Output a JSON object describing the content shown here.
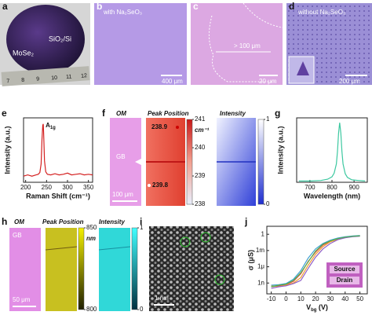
{
  "panels": {
    "a": {
      "letter": "a",
      "material": "MoSe₂",
      "substrate": "SiO₂/Si",
      "ruler": [
        7,
        8,
        9,
        10,
        11,
        12
      ]
    },
    "b": {
      "letter": "b",
      "caption": "with Na₂SeO₃",
      "scale": "400 μm"
    },
    "c": {
      "letter": "c",
      "size": "> 100 μm",
      "scale": "20 μm"
    },
    "d": {
      "letter": "d",
      "caption": "without Na₂SeO₃",
      "scale": "200 μm"
    },
    "f": {
      "letter": "f",
      "om": "OM",
      "peak": "Peak Position",
      "intensity": "Intensity",
      "gb": "GB",
      "scale": "100 μm",
      "spot_high": 238.9,
      "spot_low": 239.8,
      "peak_bar": {
        "range": [
          238,
          241
        ],
        "ticks": [
          238,
          239,
          240,
          241
        ],
        "unit": "cm⁻¹"
      },
      "intensity_bar": {
        "range": [
          0,
          1
        ],
        "ticks": [
          0,
          1
        ]
      }
    },
    "h": {
      "letter": "h",
      "om": "OM",
      "peak": "Peak Position",
      "intensity": "Intensity",
      "gb": "GB",
      "scale": "50 μm",
      "peak_bar": {
        "range": [
          800,
          850
        ],
        "ticks": [
          800,
          850
        ],
        "unit": "nm"
      },
      "intensity_bar": {
        "range": [
          0,
          1
        ],
        "ticks": [
          0,
          1
        ]
      }
    },
    "i": {
      "letter": "i",
      "scale": "1 nm"
    }
  },
  "chart_data": [
    {
      "type": "line",
      "letter": "e",
      "xlabel": "Raman Shift (cm⁻¹)",
      "ylabel": "Intensity (a.u.)",
      "x": [
        195,
        205,
        215,
        225,
        230,
        234,
        237,
        239,
        241,
        242,
        243,
        245,
        248,
        252,
        260,
        270,
        280,
        290,
        300,
        310,
        320,
        330,
        340,
        350,
        360
      ],
      "series": [
        {
          "color": "#d42020",
          "values": [
            0.1,
            0.12,
            0.1,
            0.12,
            0.13,
            0.16,
            0.3,
            0.7,
            0.93,
            0.95,
            0.8,
            0.35,
            0.17,
            0.13,
            0.12,
            0.14,
            0.12,
            0.13,
            0.15,
            0.12,
            0.13,
            0.14,
            0.12,
            0.13,
            0.12
          ]
        }
      ],
      "xlim": [
        195,
        360
      ],
      "xticks": [
        200,
        250,
        300,
        350
      ],
      "ylim": [
        0,
        1.05
      ],
      "annotation": {
        "text": "A",
        "sub": "1g"
      }
    },
    {
      "type": "line",
      "letter": "g",
      "xlabel": "Wavelength (nm)",
      "ylabel": "Intensity (a.u.)",
      "x": [
        650,
        700,
        750,
        780,
        800,
        810,
        820,
        825,
        830,
        835,
        840,
        845,
        850,
        860,
        870,
        890,
        920,
        950
      ],
      "series": [
        {
          "color": "#3cc8a0",
          "values": [
            0.02,
            0.02,
            0.03,
            0.05,
            0.09,
            0.15,
            0.3,
            0.5,
            0.8,
            0.97,
            0.8,
            0.5,
            0.3,
            0.14,
            0.08,
            0.04,
            0.03,
            0.02
          ]
        }
      ],
      "xlim": [
        640,
        960
      ],
      "xticks": [
        700,
        800,
        900
      ],
      "ylim": [
        0,
        1.05
      ]
    },
    {
      "type": "line",
      "letter": "j",
      "xlabel": {
        "text": "V",
        "sub": "bg",
        "tail": " (V)"
      },
      "ylabel": "σ (μS)",
      "x": [
        -10,
        -5,
        0,
        5,
        10,
        15,
        20,
        25,
        30,
        35,
        40,
        45,
        50
      ],
      "yscale": "log",
      "xlim": [
        -13,
        55
      ],
      "xticks": [
        -10,
        0,
        10,
        20,
        30,
        40,
        50
      ],
      "ylim": [
        1e-11,
        30
      ],
      "yticks": [
        1,
        {
          "value": 0.001,
          "label": "1m"
        },
        {
          "value": 1e-06,
          "label": "1μ"
        },
        {
          "value": 1e-09,
          "label": "1n"
        }
      ],
      "series": [
        {
          "color": "#e8504a",
          "values": [
            2e-10,
            3e-10,
            5e-10,
            2e-09,
            5e-08,
            1e-05,
            0.0005,
            0.01,
            0.05,
            0.15,
            0.3,
            0.45,
            0.55
          ]
        },
        {
          "color": "#f0a030",
          "values": [
            3e-10,
            2e-10,
            4e-10,
            1e-09,
            1e-08,
            2e-06,
            0.0002,
            0.005,
            0.04,
            0.12,
            0.25,
            0.4,
            0.5
          ]
        },
        {
          "color": "#9060c8",
          "values": [
            1e-10,
            2e-10,
            3e-10,
            8e-10,
            3e-09,
            5e-07,
            6e-05,
            0.002,
            0.02,
            0.1,
            0.22,
            0.35,
            0.45
          ]
        },
        {
          "color": "#40a0d0",
          "values": [
            4e-10,
            5e-10,
            8e-10,
            5e-09,
            2e-07,
            4e-05,
            0.002,
            0.02,
            0.08,
            0.2,
            0.35,
            0.5,
            0.6
          ]
        },
        {
          "color": "#50b050",
          "values": [
            2e-10,
            4e-10,
            6e-10,
            3e-09,
            8e-08,
            8e-06,
            0.0008,
            0.015,
            0.06,
            0.16,
            0.3,
            0.42,
            0.52
          ]
        }
      ],
      "inset": {
        "top": "Source",
        "bottom": "Drain"
      }
    }
  ]
}
